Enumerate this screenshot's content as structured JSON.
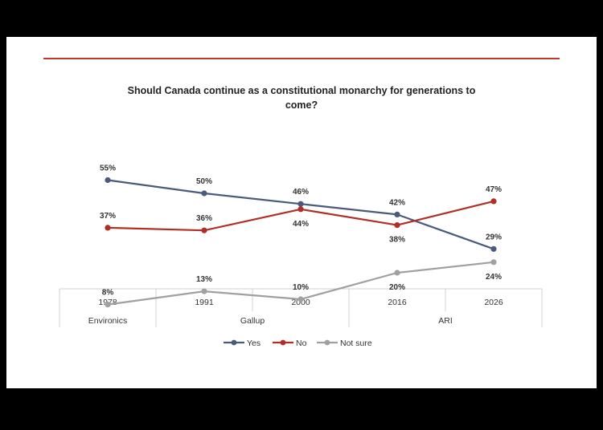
{
  "colors": {
    "yes": "#4a5a7b",
    "no": "#b02e26",
    "not_sure": "#a0a0a0",
    "rule": "#c0392b"
  },
  "chart_data": {
    "type": "line",
    "title": "Should Canada continue as a constitutional monarchy for generations to come?",
    "title_lines": [
      "Should Canada continue as a constitutional monarchy for generations to",
      "come?"
    ],
    "categories": [
      "1978",
      "1991",
      "2000",
      "2016",
      "2026"
    ],
    "sources": [
      {
        "name": "Environics",
        "span": [
          "1978",
          "1978"
        ]
      },
      {
        "name": "Gallup",
        "span": [
          "1991",
          "2000"
        ]
      },
      {
        "name": "ARI",
        "span": [
          "2016",
          "2026"
        ]
      }
    ],
    "series": [
      {
        "name": "Yes",
        "key": "yes",
        "values": [
          55,
          50,
          46,
          42,
          29
        ],
        "labels": [
          "55%",
          "50%",
          "46%",
          "42%",
          "29%"
        ]
      },
      {
        "name": "No",
        "key": "no",
        "values": [
          37,
          36,
          44,
          38,
          47
        ],
        "labels": [
          "37%",
          "36%",
          "44%",
          "38%",
          "47%"
        ]
      },
      {
        "name": "Not sure",
        "key": "not_sure",
        "values": [
          8,
          13,
          10,
          20,
          24
        ],
        "labels": [
          "8%",
          "13%",
          "10%",
          "20%",
          "24%"
        ]
      }
    ],
    "ylim": [
      0,
      60
    ],
    "grid": false,
    "legend_position": "bottom"
  }
}
